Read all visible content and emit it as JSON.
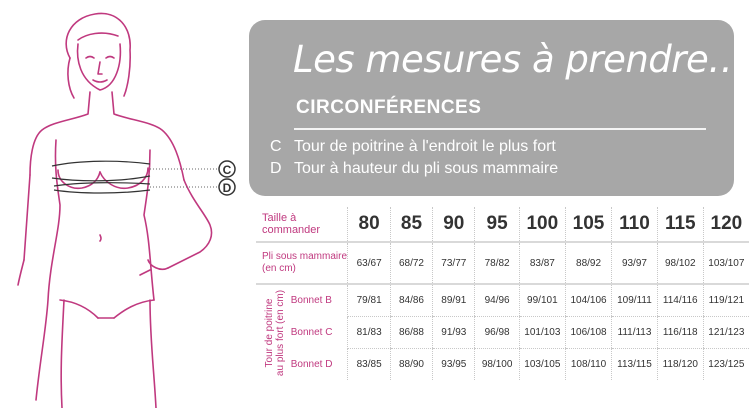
{
  "header": {
    "title": "Les mesures à prendre…",
    "subtitle": "CIRCONFÉRENCES",
    "legend": [
      {
        "key": "C",
        "text": "Tour de poitrine à l'endroit le plus fort"
      },
      {
        "key": "D",
        "text": "Tour à hauteur du pli sous mammaire"
      }
    ]
  },
  "figure": {
    "markers": [
      "C",
      "D"
    ]
  },
  "colors": {
    "accent": "#c0397f",
    "panel": "#a7a7a7",
    "text": "#333333"
  },
  "table": {
    "header_label": "Taille à commander",
    "sizes": [
      "80",
      "85",
      "90",
      "95",
      "100",
      "105",
      "110",
      "115",
      "120"
    ],
    "pli_label_1": "Pli sous mammaire",
    "pli_label_2": "(en cm)",
    "pli_values": [
      "63/67",
      "68/72",
      "73/77",
      "78/82",
      "83/87",
      "88/92",
      "93/97",
      "98/102",
      "103/107"
    ],
    "vertical_label_1": "Tour de poitrine",
    "vertical_label_2": "au plus fort (en cm)",
    "bonnets": [
      {
        "label": "Bonnet B",
        "values": [
          "79/81",
          "84/86",
          "89/91",
          "94/96",
          "99/101",
          "104/106",
          "109/111",
          "114/116",
          "119/121"
        ]
      },
      {
        "label": "Bonnet C",
        "values": [
          "81/83",
          "86/88",
          "91/93",
          "96/98",
          "101/103",
          "106/108",
          "111/113",
          "116/118",
          "121/123"
        ]
      },
      {
        "label": "Bonnet D",
        "values": [
          "83/85",
          "88/90",
          "93/95",
          "98/100",
          "103/105",
          "108/110",
          "113/115",
          "118/120",
          "123/125"
        ]
      }
    ]
  }
}
